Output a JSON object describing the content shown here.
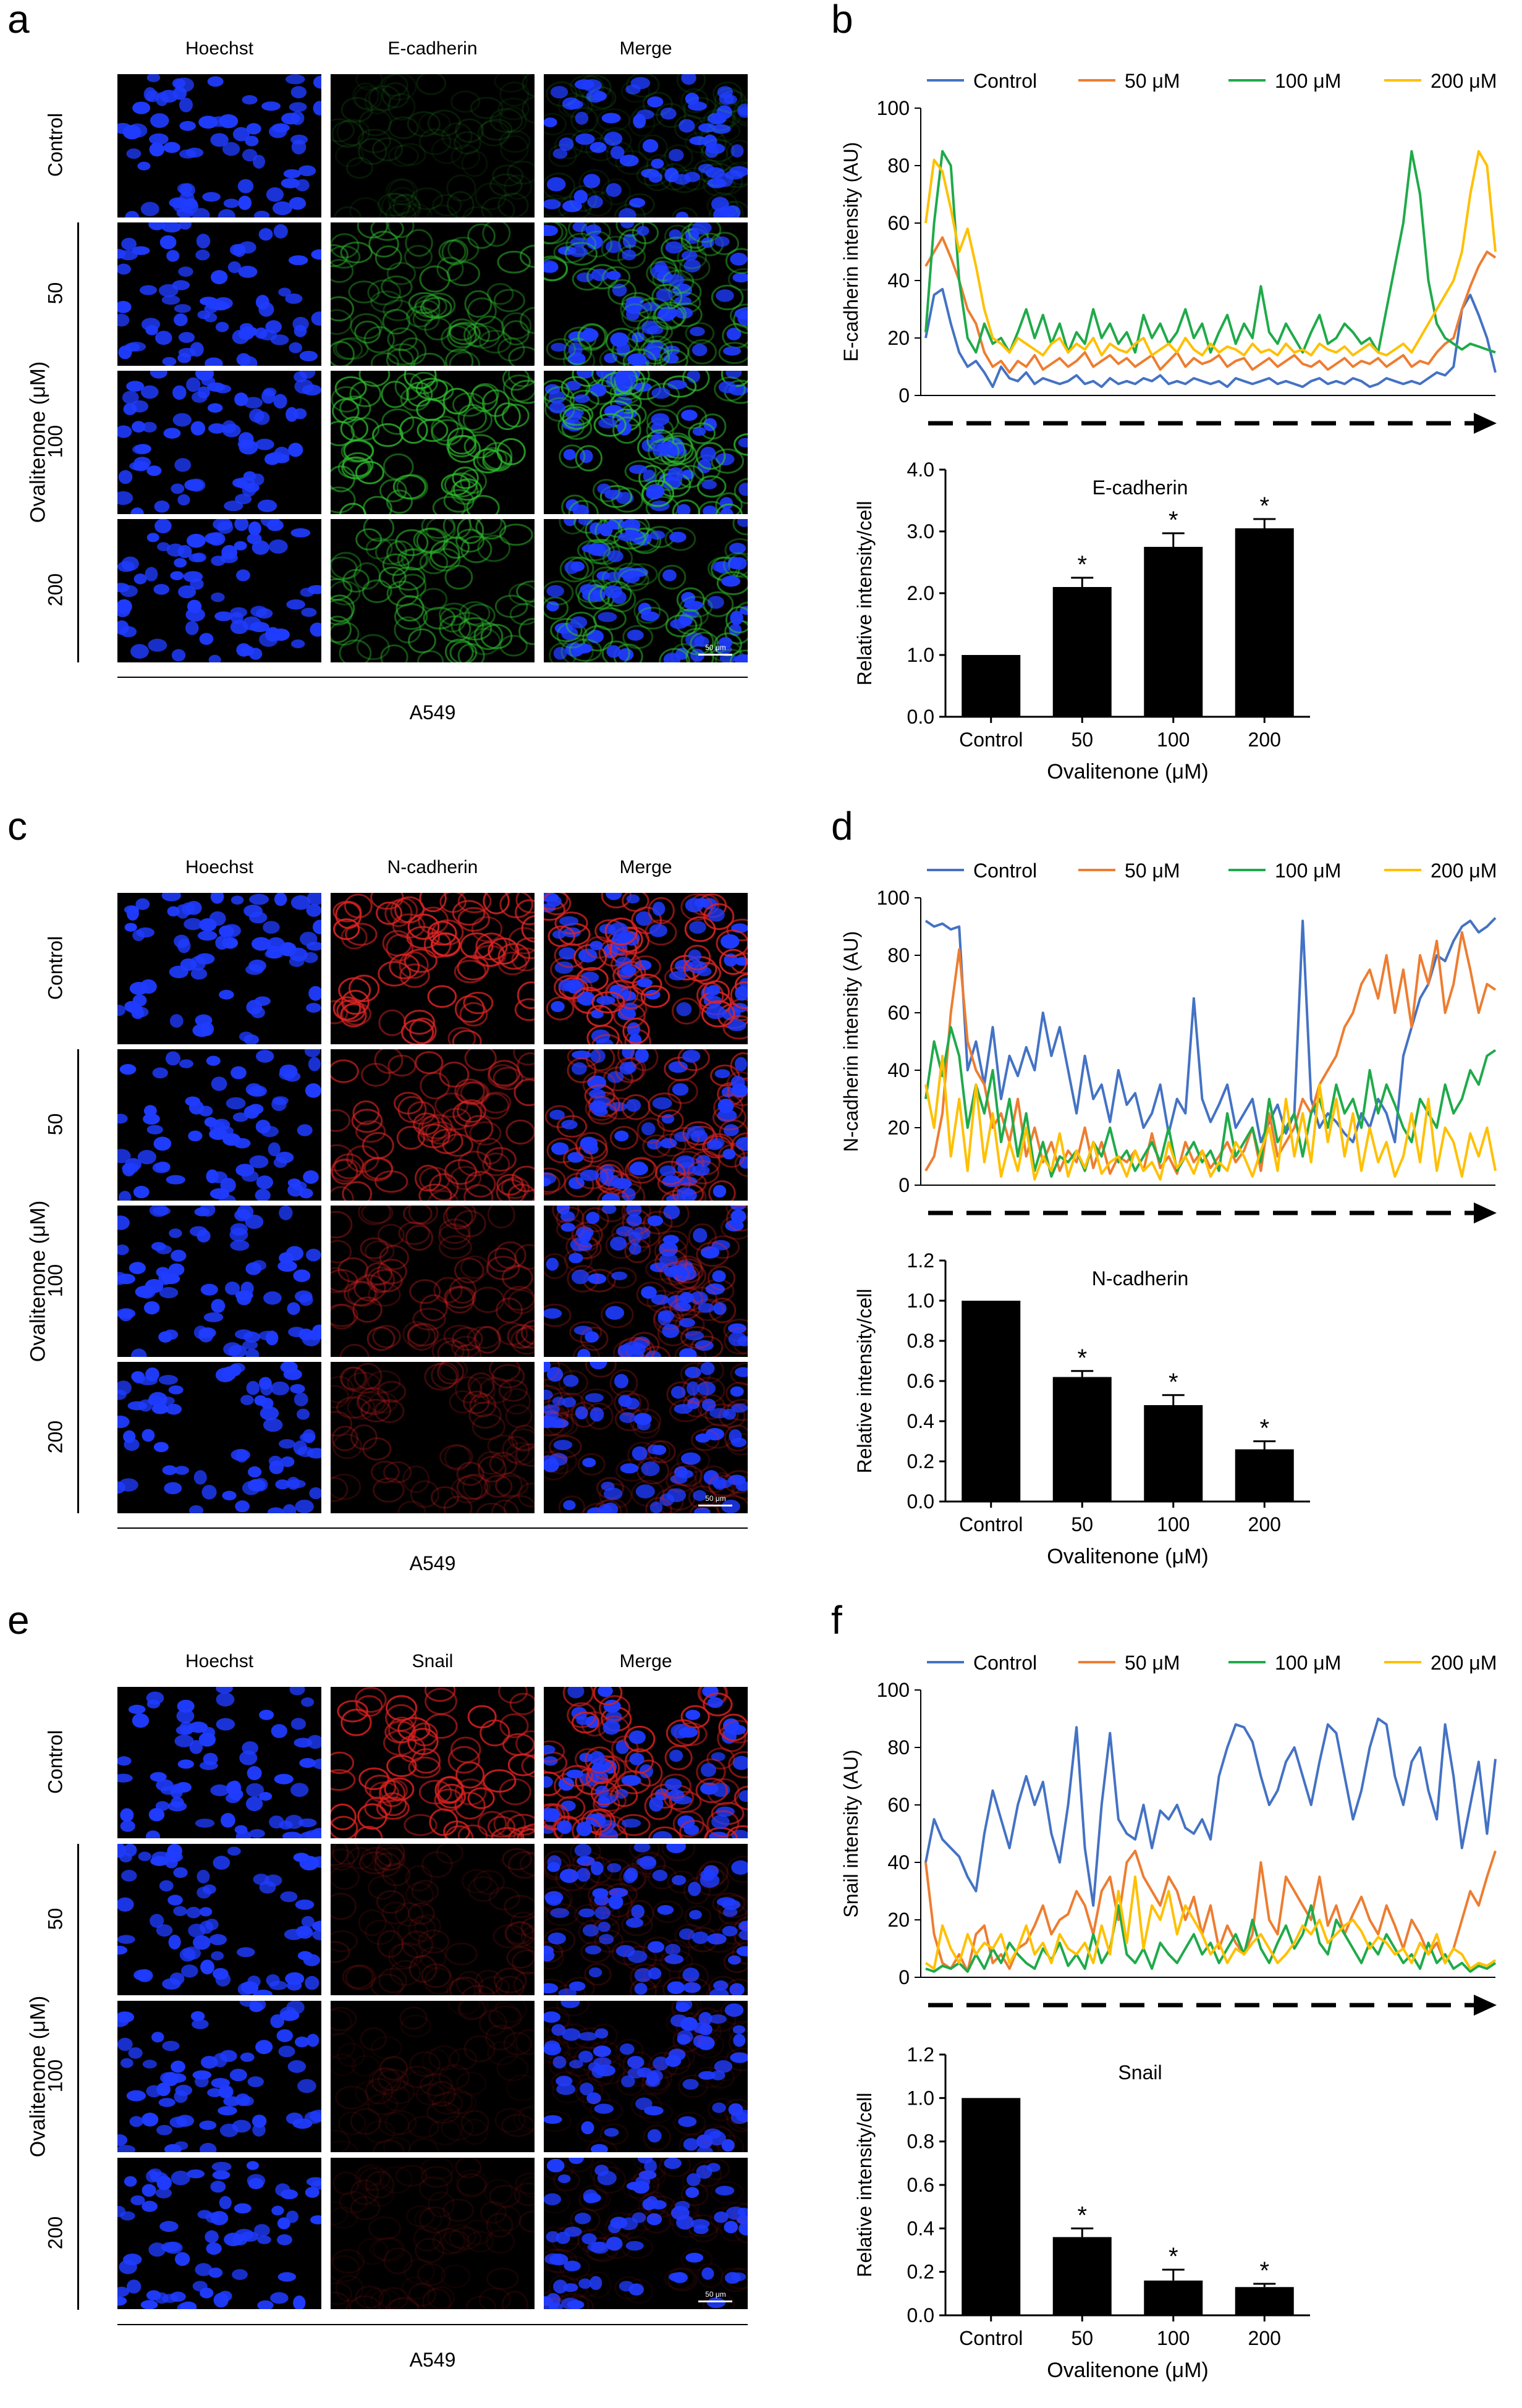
{
  "figure": {
    "panels": {
      "a": {
        "letter": "a",
        "columns": [
          "Hoechst",
          "E-cadherin",
          "Merge"
        ],
        "rows": [
          "Control",
          "50",
          "100",
          "200"
        ],
        "group_label": "Ovalitenone (μM)",
        "cell_line": "A549",
        "scale_bar": "50 μm",
        "marker_color": "#2fbf2f",
        "marker_levels": [
          0.15,
          0.55,
          0.8,
          0.6
        ]
      },
      "c": {
        "letter": "c",
        "columns": [
          "Hoechst",
          "N-cadherin",
          "Merge"
        ],
        "rows": [
          "Control",
          "50",
          "100",
          "200"
        ],
        "group_label": "Ovalitenone (μM)",
        "cell_line": "A549",
        "scale_bar": "50 μm",
        "marker_color": "#e02424",
        "marker_levels": [
          0.9,
          0.65,
          0.4,
          0.3
        ]
      },
      "e": {
        "letter": "e",
        "columns": [
          "Hoechst",
          "Snail",
          "Merge"
        ],
        "rows": [
          "Control",
          "50",
          "100",
          "200"
        ],
        "group_label": "Ovalitenone (μM)",
        "cell_line": "A549",
        "scale_bar": "50 μm",
        "marker_color": "#d82020",
        "marker_levels": [
          0.9,
          0.2,
          0.12,
          0.12
        ]
      },
      "b": {
        "letter": "b"
      },
      "d": {
        "letter": "d"
      },
      "f": {
        "letter": "f"
      }
    },
    "series_colors": {
      "Control": "#4472c4",
      "50 μM": "#ed7d31",
      "100 μM": "#1faa4a",
      "200 μM": "#ffc000"
    }
  },
  "chart_data": [
    {
      "id": "b-line",
      "type": "line",
      "title": "",
      "ylabel": "E-cadherin intensity (AU)",
      "xlabel": "",
      "ylim": [
        0,
        100
      ],
      "yticks": [
        0,
        20,
        40,
        60,
        80,
        100
      ],
      "legend": [
        "Control",
        "50 μM",
        "100 μM",
        "200 μM"
      ],
      "series": [
        {
          "name": "Control",
          "values": [
            20,
            35,
            37,
            25,
            15,
            10,
            12,
            8,
            3,
            10,
            6,
            5,
            8,
            4,
            6,
            5,
            4,
            5,
            7,
            4,
            5,
            3,
            6,
            4,
            5,
            4,
            6,
            5,
            7,
            4,
            5,
            4,
            6,
            5,
            4,
            5,
            3,
            6,
            5,
            4,
            5,
            6,
            4,
            5,
            4,
            3,
            5,
            6,
            4,
            5,
            4,
            6,
            5,
            3,
            4,
            6,
            5,
            4,
            5,
            4,
            6,
            8,
            7,
            10,
            30,
            35,
            28,
            20,
            8
          ]
        },
        {
          "name": "50 μM",
          "values": [
            45,
            50,
            55,
            48,
            40,
            30,
            25,
            15,
            10,
            12,
            8,
            12,
            10,
            14,
            9,
            11,
            13,
            10,
            12,
            15,
            10,
            12,
            14,
            11,
            13,
            10,
            12,
            14,
            9,
            12,
            15,
            10,
            13,
            11,
            12,
            14,
            10,
            12,
            13,
            9,
            11,
            13,
            10,
            12,
            14,
            11,
            10,
            12,
            9,
            11,
            13,
            10,
            12,
            11,
            13,
            10,
            12,
            14,
            10,
            12,
            11,
            15,
            18,
            20,
            30,
            38,
            45,
            50,
            48
          ]
        },
        {
          "name": "100 μM",
          "values": [
            22,
            60,
            85,
            80,
            40,
            20,
            15,
            25,
            18,
            20,
            15,
            22,
            30,
            20,
            28,
            18,
            25,
            15,
            22,
            18,
            30,
            20,
            25,
            18,
            22,
            15,
            28,
            20,
            25,
            18,
            22,
            30,
            20,
            25,
            15,
            22,
            28,
            18,
            25,
            20,
            38,
            22,
            18,
            25,
            20,
            15,
            22,
            28,
            18,
            20,
            25,
            22,
            18,
            20,
            15,
            30,
            45,
            60,
            85,
            70,
            40,
            25,
            20,
            18,
            16,
            18,
            17,
            16,
            15
          ]
        },
        {
          "name": "200 μM",
          "values": [
            60,
            82,
            78,
            65,
            50,
            58,
            45,
            30,
            20,
            18,
            15,
            20,
            18,
            16,
            14,
            18,
            20,
            15,
            18,
            16,
            20,
            14,
            18,
            16,
            15,
            18,
            20,
            14,
            16,
            18,
            15,
            20,
            16,
            14,
            18,
            15,
            17,
            16,
            14,
            18,
            15,
            16,
            14,
            18,
            15,
            16,
            14,
            18,
            16,
            15,
            17,
            14,
            16,
            18,
            15,
            14,
            16,
            18,
            15,
            20,
            25,
            30,
            35,
            40,
            50,
            70,
            85,
            80,
            50
          ]
        }
      ]
    },
    {
      "id": "b-bar",
      "type": "bar",
      "title": "E-cadherin",
      "ylabel": "Relative intensity/cell",
      "xlabel": "Ovalitenone (μM)",
      "ylim": [
        0,
        4
      ],
      "yticks": [
        "0.0",
        "1.0",
        "2.0",
        "3.0",
        "4.0"
      ],
      "categories": [
        "Control",
        "50",
        "100",
        "200"
      ],
      "values": [
        1.0,
        2.1,
        2.75,
        3.05
      ],
      "errors": [
        0,
        0.15,
        0.22,
        0.15
      ],
      "significance": [
        "",
        "*",
        "*",
        "*"
      ]
    },
    {
      "id": "d-line",
      "type": "line",
      "title": "",
      "ylabel": "N-cadherin intensity (AU)",
      "xlabel": "",
      "ylim": [
        0,
        100
      ],
      "yticks": [
        0,
        20,
        40,
        60,
        80,
        100
      ],
      "legend": [
        "Control",
        "50 μM",
        "100 μM",
        "200 μM"
      ],
      "series": [
        {
          "name": "Control",
          "values": [
            92,
            90,
            91,
            89,
            90,
            40,
            50,
            35,
            55,
            30,
            45,
            38,
            48,
            40,
            60,
            45,
            55,
            40,
            25,
            45,
            30,
            35,
            22,
            40,
            28,
            32,
            20,
            25,
            35,
            18,
            30,
            25,
            65,
            30,
            22,
            28,
            35,
            20,
            25,
            30,
            15,
            22,
            28,
            18,
            25,
            92,
            30,
            20,
            25,
            22,
            18,
            15,
            25,
            20,
            30,
            25,
            15,
            45,
            55,
            65,
            70,
            80,
            78,
            85,
            90,
            92,
            88,
            90,
            93
          ]
        },
        {
          "name": "50 μM",
          "values": [
            5,
            10,
            25,
            60,
            82,
            50,
            40,
            35,
            20,
            25,
            15,
            30,
            10,
            20,
            8,
            15,
            5,
            12,
            8,
            20,
            6,
            15,
            4,
            10,
            8,
            12,
            5,
            18,
            6,
            10,
            4,
            15,
            8,
            12,
            6,
            10,
            15,
            8,
            12,
            20,
            5,
            25,
            10,
            15,
            20,
            30,
            25,
            35,
            40,
            45,
            55,
            60,
            70,
            75,
            65,
            80,
            60,
            75,
            55,
            80,
            70,
            85,
            60,
            70,
            88,
            75,
            60,
            70,
            68
          ]
        },
        {
          "name": "100 μM",
          "values": [
            30,
            50,
            38,
            55,
            45,
            20,
            35,
            25,
            40,
            15,
            30,
            10,
            25,
            5,
            15,
            3,
            10,
            8,
            12,
            5,
            15,
            10,
            20,
            8,
            12,
            5,
            10,
            15,
            8,
            20,
            5,
            10,
            15,
            8,
            12,
            5,
            25,
            10,
            15,
            20,
            8,
            30,
            15,
            20,
            25,
            10,
            25,
            30,
            20,
            35,
            25,
            30,
            20,
            40,
            25,
            35,
            28,
            20,
            15,
            30,
            25,
            20,
            35,
            25,
            30,
            40,
            35,
            45,
            47
          ]
        },
        {
          "name": "200 μM",
          "values": [
            35,
            20,
            45,
            10,
            30,
            5,
            35,
            8,
            25,
            3,
            15,
            5,
            20,
            2,
            10,
            5,
            18,
            3,
            12,
            6,
            15,
            4,
            8,
            10,
            3,
            12,
            5,
            8,
            2,
            15,
            6,
            10,
            4,
            12,
            3,
            8,
            5,
            15,
            10,
            3,
            12,
            20,
            5,
            30,
            10,
            25,
            8,
            35,
            15,
            30,
            10,
            25,
            5,
            20,
            8,
            15,
            3,
            10,
            25,
            8,
            30,
            5,
            20,
            15,
            3,
            18,
            10,
            20,
            5
          ]
        }
      ]
    },
    {
      "id": "d-bar",
      "type": "bar",
      "title": "N-cadherin",
      "ylabel": "Relative intensity/cell",
      "xlabel": "Ovalitenone (μM)",
      "ylim": [
        0,
        1.2
      ],
      "yticks": [
        "0.0",
        "0.2",
        "0.4",
        "0.6",
        "0.8",
        "1.0",
        "1.2"
      ],
      "categories": [
        "Control",
        "50",
        "100",
        "200"
      ],
      "values": [
        1.0,
        0.62,
        0.48,
        0.26
      ],
      "errors": [
        0,
        0.03,
        0.05,
        0.04
      ],
      "significance": [
        "",
        "*",
        "*",
        "*"
      ]
    },
    {
      "id": "f-line",
      "type": "line",
      "title": "",
      "ylabel": "Snail intensity (AU)",
      "xlabel": "",
      "ylim": [
        0,
        100
      ],
      "yticks": [
        0,
        20,
        40,
        60,
        80,
        100
      ],
      "legend": [
        "Control",
        "50 μM",
        "100 μM",
        "200 μM"
      ],
      "series": [
        {
          "name": "Control",
          "values": [
            40,
            55,
            48,
            45,
            42,
            35,
            30,
            50,
            65,
            55,
            45,
            60,
            70,
            60,
            68,
            50,
            40,
            60,
            87,
            45,
            25,
            60,
            85,
            55,
            50,
            48,
            60,
            45,
            58,
            55,
            60,
            52,
            50,
            55,
            48,
            70,
            80,
            88,
            87,
            82,
            70,
            60,
            65,
            75,
            80,
            70,
            60,
            75,
            88,
            85,
            70,
            55,
            65,
            80,
            90,
            88,
            70,
            60,
            75,
            80,
            65,
            55,
            88,
            70,
            45,
            60,
            75,
            50,
            76
          ]
        },
        {
          "name": "50 μM",
          "values": [
            40,
            15,
            5,
            3,
            8,
            2,
            15,
            18,
            5,
            8,
            3,
            10,
            12,
            18,
            25,
            15,
            20,
            22,
            30,
            25,
            15,
            30,
            35,
            20,
            40,
            44,
            35,
            30,
            25,
            35,
            30,
            20,
            28,
            15,
            25,
            10,
            18,
            12,
            8,
            15,
            40,
            20,
            15,
            35,
            30,
            25,
            20,
            35,
            18,
            25,
            15,
            22,
            28,
            20,
            15,
            25,
            18,
            10,
            20,
            15,
            8,
            12,
            5,
            10,
            20,
            30,
            25,
            35,
            44
          ]
        },
        {
          "name": "100 μM",
          "values": [
            3,
            2,
            4,
            3,
            5,
            2,
            8,
            3,
            10,
            5,
            12,
            8,
            5,
            3,
            10,
            6,
            12,
            4,
            8,
            3,
            15,
            5,
            10,
            25,
            8,
            5,
            10,
            3,
            12,
            8,
            5,
            10,
            15,
            8,
            12,
            5,
            10,
            15,
            8,
            20,
            10,
            5,
            12,
            18,
            10,
            15,
            25,
            12,
            8,
            20,
            15,
            10,
            5,
            12,
            8,
            15,
            10,
            5,
            8,
            3,
            12,
            5,
            8,
            3,
            5,
            2,
            4,
            3,
            5
          ]
        },
        {
          "name": "200 μM",
          "values": [
            5,
            3,
            18,
            10,
            5,
            15,
            8,
            12,
            10,
            15,
            5,
            10,
            18,
            8,
            12,
            5,
            15,
            10,
            8,
            12,
            5,
            18,
            8,
            30,
            12,
            35,
            10,
            25,
            20,
            30,
            15,
            25,
            20,
            15,
            8,
            12,
            5,
            10,
            8,
            12,
            15,
            10,
            5,
            8,
            12,
            18,
            15,
            20,
            12,
            15,
            18,
            20,
            16,
            10,
            14,
            12,
            8,
            10,
            5,
            12,
            8,
            15,
            5,
            10,
            8,
            3,
            5,
            4,
            6
          ]
        }
      ]
    },
    {
      "id": "f-bar",
      "type": "bar",
      "title": "Snail",
      "ylabel": "Relative intensity/cell",
      "xlabel": "Ovalitenone (μM)",
      "ylim": [
        0,
        1.2
      ],
      "yticks": [
        "0.0",
        "0.2",
        "0.4",
        "0.6",
        "0.8",
        "1.0",
        "1.2"
      ],
      "categories": [
        "Control",
        "50",
        "100",
        "200"
      ],
      "values": [
        1.0,
        0.36,
        0.16,
        0.13
      ],
      "errors": [
        0,
        0.04,
        0.05,
        0.015
      ],
      "significance": [
        "",
        "*",
        "*",
        "*"
      ]
    }
  ]
}
